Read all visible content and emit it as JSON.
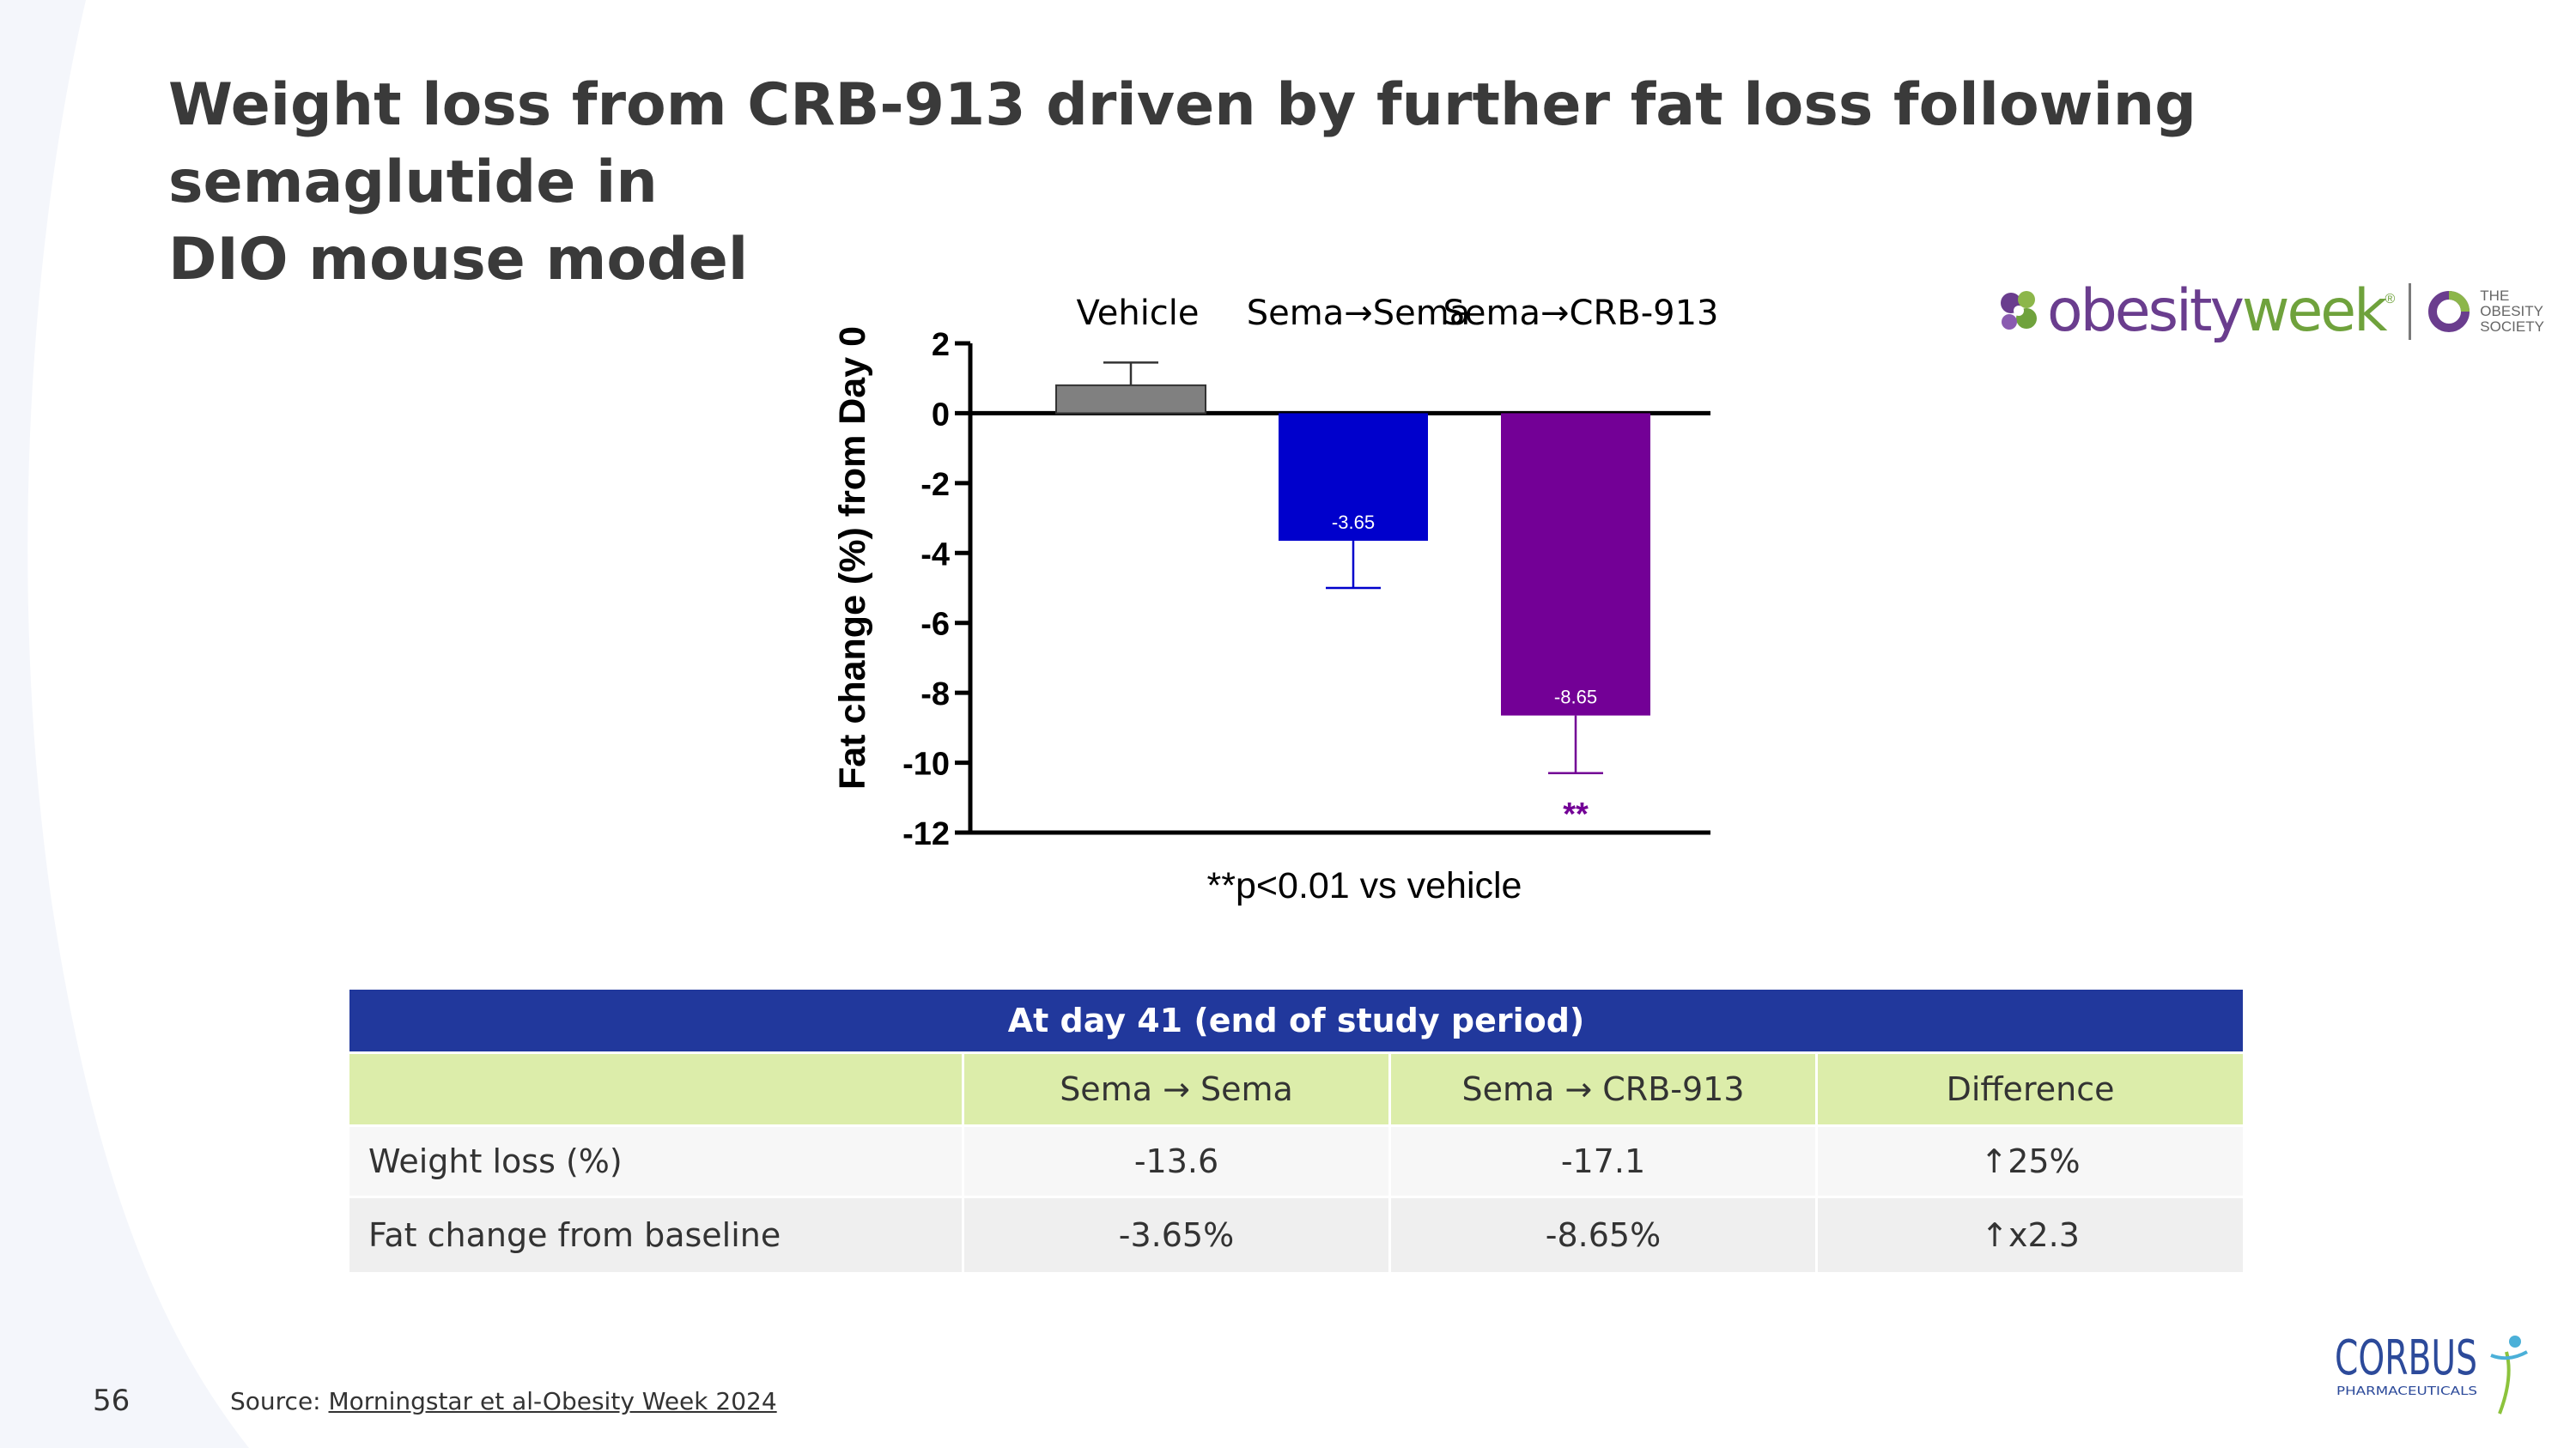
{
  "slide": {
    "title_line1": "Weight loss from CRB-913 driven by further fat loss following semaglutide in",
    "title_line2": "DIO mouse model",
    "page_number": "56",
    "source_prefix": "Source: ",
    "source_link": "Morningstar et al-Obesity Week 2024"
  },
  "logos": {
    "obesityweek_part1": "obesity",
    "obesityweek_part2": "week",
    "obesityweek_tm": "®",
    "obesity_society": "THE\nOBESITY\nSOCIETY",
    "corbus_name": "CORBUS",
    "corbus_sub": "PHARMACEUTICALS"
  },
  "chart_data": {
    "type": "bar",
    "categories": [
      "Vehicle",
      "Sema→Sema",
      "Sema→CRB-913"
    ],
    "values": [
      0.8,
      -3.65,
      -8.65
    ],
    "error_bars": [
      0.65,
      1.35,
      1.65
    ],
    "data_labels": [
      "",
      "-3.65",
      "-8.65"
    ],
    "significance": [
      "",
      "",
      "**"
    ],
    "colors": [
      "#808080",
      "#0000cc",
      "#730096"
    ],
    "ylabel": "Fat change (%) from Day 0",
    "ylim": [
      -12,
      2
    ],
    "yticks": [
      2,
      0,
      -2,
      -4,
      -6,
      -8,
      -10,
      -12
    ],
    "footnote": "**p<0.01 vs vehicle"
  },
  "table": {
    "banner": "At day 41 (end of study period)",
    "columns": [
      "",
      "Sema → Sema",
      "Sema → CRB-913",
      "Difference"
    ],
    "rows": [
      {
        "label": "Weight loss (%)",
        "values": [
          "-13.6",
          "-17.1",
          "↑25%"
        ]
      },
      {
        "label": "Fat change from baseline",
        "values": [
          "-3.65%",
          "-8.65%",
          "↑x2.3"
        ]
      }
    ]
  },
  "colors": {
    "title": "#3a3a3a",
    "table_banner": "#21389c",
    "table_header": "#dcedaa",
    "corbus_blue": "#2c4a9a"
  }
}
